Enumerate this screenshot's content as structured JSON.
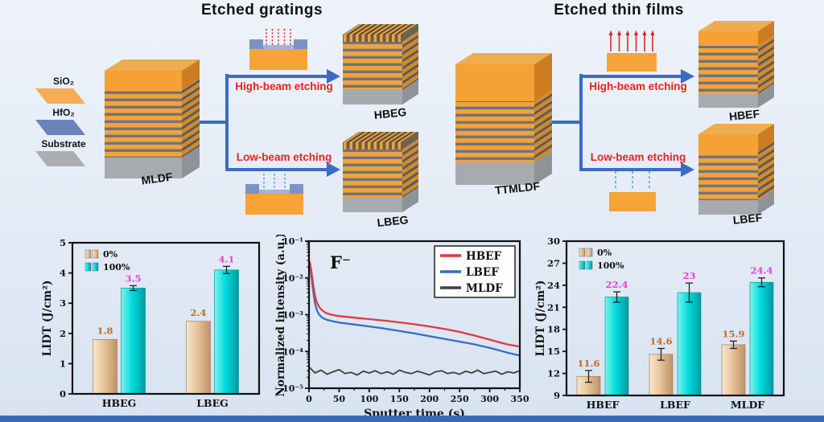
{
  "diagram": {
    "gratings": {
      "title": "Etched gratings",
      "source": "MLDF",
      "high_label": "High-beam etching",
      "low_label": "Low-beam etching",
      "high_product": "HBEG",
      "low_product": "LBEG"
    },
    "films": {
      "title": "Etched thin films",
      "source": "TTMLDF",
      "high_label": "High-beam etching",
      "low_label": "Low-beam etching",
      "high_product": "HBEF",
      "low_product": "LBEF"
    },
    "materials": [
      {
        "name": "SiO₂",
        "color": "#f4ad55"
      },
      {
        "name": "HfO₂",
        "color": "#6a83b8"
      },
      {
        "name": "Substrate",
        "color": "#abadb2"
      }
    ]
  },
  "accents": {
    "arrow_blue": "#3a6cc5",
    "etch_label_red": "#e8221f",
    "bar_tan": "#e7c49a",
    "bar_cyan": "#00dcdc",
    "label_orange": "#c2691e",
    "label_magenta": "#e93fd6"
  },
  "chart_data": [
    {
      "id": "lidt-gratings",
      "type": "bar",
      "title": "",
      "xlabel": "",
      "ylabel": "LIDT (J/cm²)",
      "ylim": [
        0,
        5
      ],
      "yticks": [
        0,
        1,
        2,
        3,
        4,
        5
      ],
      "categories": [
        "HBEG",
        "LBEG"
      ],
      "series": [
        {
          "name": "0%",
          "values": [
            1.8,
            2.4
          ],
          "errors": [
            0.05,
            0.05
          ],
          "color_key": "tan",
          "label_color": "#c2691e"
        },
        {
          "name": "100%",
          "values": [
            3.5,
            4.1
          ],
          "errors": [
            0.08,
            0.12
          ],
          "color_key": "cyan",
          "label_color": "#e93fd6"
        }
      ],
      "legend_position": "top-left",
      "grid": false
    },
    {
      "id": "sims-depth-profile",
      "type": "line",
      "title": "",
      "annotation": "F⁻",
      "xlabel": "Sputter time (s)",
      "ylabel": "Normalized intensity (a.u.)",
      "xlim": [
        0,
        350
      ],
      "xticks": [
        0,
        50,
        100,
        150,
        200,
        250,
        300,
        350
      ],
      "yscale": "log",
      "ylim": [
        1e-05,
        0.1
      ],
      "ytick_labels": [
        "10⁻⁵",
        "10⁻⁴",
        "10⁻³",
        "10⁻²",
        "10⁻¹"
      ],
      "legend_position": "top-right",
      "grid": false,
      "series": [
        {
          "name": "HBEF",
          "color": "#e0393c",
          "x": [
            0,
            2,
            4,
            6,
            8,
            10,
            13,
            16,
            20,
            25,
            30,
            40,
            50,
            75,
            100,
            125,
            150,
            175,
            200,
            225,
            250,
            275,
            300,
            315,
            330,
            350
          ],
          "y": [
            0.03,
            0.024,
            0.015,
            0.0085,
            0.005,
            0.0032,
            0.0022,
            0.0017,
            0.0014,
            0.0012,
            0.00108,
            0.00098,
            0.00092,
            0.00083,
            0.00076,
            0.00069,
            0.00062,
            0.00055,
            0.00048,
            0.00041,
            0.00034,
            0.00027,
            0.00021,
            0.00018,
            0.000155,
            0.000135
          ]
        },
        {
          "name": "LBEF",
          "color": "#3a6dc3",
          "x": [
            0,
            2,
            4,
            6,
            8,
            10,
            13,
            16,
            20,
            25,
            30,
            40,
            50,
            75,
            100,
            125,
            150,
            175,
            200,
            225,
            250,
            275,
            300,
            315,
            330,
            350
          ],
          "y": [
            0.026,
            0.019,
            0.011,
            0.006,
            0.0033,
            0.002,
            0.00135,
            0.00105,
            0.00088,
            0.00078,
            0.00072,
            0.00066,
            0.00061,
            0.00054,
            0.00048,
            0.00042,
            0.00036,
            0.00031,
            0.00026,
            0.00022,
            0.000185,
            0.000155,
            0.000125,
            0.000108,
            9.2e-05,
            7.8e-05
          ]
        },
        {
          "name": "MLDF",
          "color": "#3f3f3f",
          "x": [
            0,
            10,
            20,
            30,
            40,
            50,
            60,
            70,
            80,
            90,
            100,
            110,
            120,
            130,
            140,
            150,
            160,
            170,
            180,
            190,
            200,
            210,
            220,
            230,
            240,
            250,
            260,
            270,
            280,
            290,
            300,
            310,
            320,
            330,
            340,
            350
          ],
          "y": [
            3.8e-05,
            2.6e-05,
            3.1e-05,
            2.4e-05,
            2.8e-05,
            3.2e-05,
            2.5e-05,
            2.7e-05,
            2.3e-05,
            2.9e-05,
            2.6e-05,
            3e-05,
            2.5e-05,
            2.8e-05,
            2.4e-05,
            3.1e-05,
            2.7e-05,
            2.5e-05,
            2.9e-05,
            2.6e-05,
            2.3e-05,
            2.8e-05,
            3e-05,
            2.5e-05,
            2.7e-05,
            2.4e-05,
            2.9e-05,
            2.6e-05,
            3.1e-05,
            2.5e-05,
            2.7e-05,
            2.9e-05,
            2.4e-05,
            2.8e-05,
            2.6e-05,
            3e-05
          ]
        }
      ]
    },
    {
      "id": "lidt-films",
      "type": "bar",
      "title": "",
      "xlabel": "",
      "ylabel": "LIDT (J/cm²)",
      "ylim": [
        9,
        30
      ],
      "yticks": [
        9,
        12,
        15,
        18,
        21,
        24,
        27,
        30
      ],
      "categories": [
        "HBEF",
        "LBEF",
        "MLDF"
      ],
      "series": [
        {
          "name": "0%",
          "values": [
            11.6,
            14.6,
            15.9
          ],
          "errors": [
            0.8,
            0.8,
            0.5
          ],
          "color_key": "tan",
          "label_color": "#c2691e"
        },
        {
          "name": "100%",
          "values": [
            22.4,
            23,
            24.4
          ],
          "errors": [
            0.7,
            1.3,
            0.6
          ],
          "color_key": "cyan",
          "label_color": "#e93fd6"
        }
      ],
      "legend_position": "top-left",
      "grid": false
    }
  ]
}
